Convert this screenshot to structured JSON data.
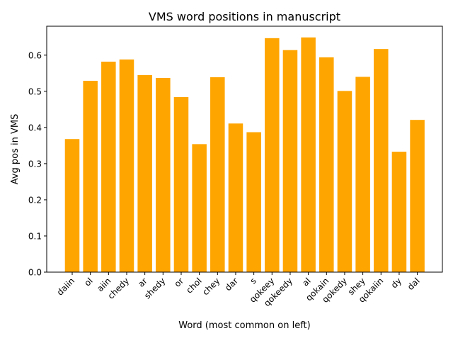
{
  "chart_data": {
    "type": "bar",
    "title": "VMS word positions in manuscript",
    "xlabel": "Word (most common on left)",
    "ylabel": "Avg pos in VMS",
    "categories": [
      "daiin",
      "ol",
      "aiin",
      "chedy",
      "ar",
      "shedy",
      "or",
      "chol",
      "chey",
      "dar",
      "s",
      "qokeey",
      "qokeedy",
      "al",
      "qokain",
      "qokedy",
      "shey",
      "qokaiin",
      "dy",
      "dal"
    ],
    "values": [
      0.368,
      0.529,
      0.582,
      0.588,
      0.545,
      0.537,
      0.484,
      0.354,
      0.539,
      0.411,
      0.387,
      0.647,
      0.614,
      0.649,
      0.594,
      0.501,
      0.54,
      0.617,
      0.333,
      0.421
    ],
    "ylim": [
      0,
      0.68
    ],
    "yticks": [
      "0.0",
      "0.1",
      "0.2",
      "0.3",
      "0.4",
      "0.5",
      "0.6"
    ],
    "bar_color": "#FFA500",
    "grid": false,
    "legend": "none"
  }
}
